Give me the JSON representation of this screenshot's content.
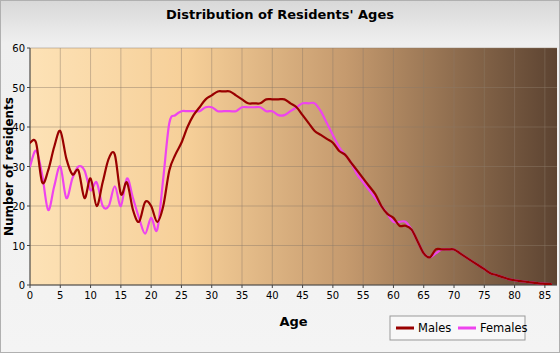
{
  "chart_data": {
    "type": "line",
    "title": "Distribution of Residents' Ages",
    "x_label": "Age",
    "y_label": "Number of residents",
    "x": [
      0,
      1,
      2,
      3,
      4,
      5,
      6,
      7,
      8,
      9,
      10,
      11,
      12,
      13,
      14,
      15,
      16,
      17,
      18,
      19,
      20,
      21,
      22,
      23,
      24,
      25,
      26,
      27,
      28,
      29,
      30,
      31,
      32,
      33,
      34,
      35,
      36,
      37,
      38,
      39,
      40,
      41,
      42,
      43,
      44,
      45,
      46,
      47,
      48,
      49,
      50,
      51,
      52,
      53,
      54,
      55,
      56,
      57,
      58,
      59,
      60,
      61,
      62,
      63,
      64,
      65,
      66,
      67,
      68,
      69,
      70,
      71,
      72,
      73,
      74,
      75,
      76,
      77,
      78,
      79,
      80,
      81,
      82,
      83,
      84,
      85,
      86
    ],
    "series": [
      {
        "name": "Males",
        "color": "#990000",
        "values": [
          36,
          36,
          26,
          29,
          35,
          39,
          32,
          28,
          29,
          22,
          27,
          20,
          26,
          32,
          33,
          23,
          26,
          19,
          16,
          21,
          20,
          16,
          20,
          29,
          33,
          36,
          40,
          43,
          45,
          47,
          48,
          49,
          49,
          49,
          48,
          47,
          46,
          46,
          46,
          47,
          47,
          47,
          47,
          46,
          45,
          43,
          41,
          39,
          38,
          37,
          36,
          34,
          33,
          31,
          29,
          27,
          25,
          23,
          20,
          18,
          17,
          15,
          15,
          14,
          11,
          8,
          7,
          9,
          9,
          9,
          9,
          8,
          7,
          6,
          5,
          4,
          3,
          2.5,
          2,
          1.5,
          1.2,
          1,
          0.8,
          0.6,
          0.4,
          0.3,
          0.2
        ]
      },
      {
        "name": "Females",
        "color": "#ee44ee",
        "values": [
          30,
          34,
          28,
          19,
          25,
          30,
          22,
          27,
          30,
          29,
          24,
          26,
          20,
          20,
          25,
          20,
          27,
          22,
          17,
          13,
          17,
          14,
          27,
          41,
          43,
          44,
          44,
          44,
          44,
          45,
          45,
          44,
          44,
          44,
          44,
          45,
          45,
          45,
          45,
          44,
          44,
          43,
          43,
          44,
          45,
          46,
          46,
          46,
          44,
          41,
          38,
          35,
          33,
          31,
          28,
          26,
          24,
          22,
          20,
          18,
          16,
          16,
          16,
          14,
          11,
          8,
          7,
          8,
          9,
          9,
          9,
          8,
          7,
          6,
          5,
          4,
          3,
          2.5,
          2,
          1.5,
          1.2,
          1,
          0.8,
          0.6,
          0.4,
          0.3,
          0.2
        ]
      }
    ],
    "xlim": [
      0,
      87
    ],
    "xticks": [
      0,
      5,
      10,
      15,
      20,
      25,
      30,
      35,
      40,
      45,
      50,
      55,
      60,
      65,
      70,
      75,
      80,
      85
    ],
    "ylim": [
      0,
      60
    ],
    "yticks": [
      0,
      10,
      20,
      30,
      40,
      50,
      60
    ],
    "grid": true,
    "legend": "bottom-right"
  }
}
